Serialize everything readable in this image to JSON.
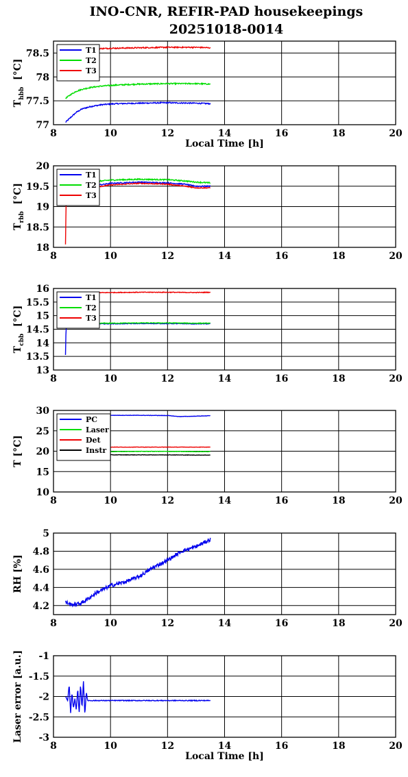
{
  "title_line1": "INO-CNR, REFIR-PAD housekeepings",
  "title_line2": "20251018-0014",
  "chart_data": [
    {
      "type": "line",
      "ylabel": "T",
      "ylabel_sub": "hbb",
      "ylabel_unit": "[°C]",
      "xlabel": "Local Time [h]",
      "xlim": [
        8,
        20
      ],
      "ylim": [
        77,
        78.75
      ],
      "xticks": [
        8,
        10,
        12,
        14,
        16,
        18,
        20
      ],
      "yticks": [
        77,
        77.5,
        78,
        78.5
      ],
      "ytick_labels": [
        "77",
        "77.5",
        "78",
        "78.5"
      ],
      "legend_position": "top-left",
      "series": [
        {
          "name": "T1",
          "color": "#0000ee",
          "x": [
            8.42,
            8.6,
            8.8,
            9.0,
            9.3,
            9.7,
            10.2,
            11.0,
            12.0,
            13.0,
            13.5
          ],
          "y": [
            77.05,
            77.15,
            77.26,
            77.33,
            77.38,
            77.42,
            77.44,
            77.45,
            77.46,
            77.45,
            77.44
          ],
          "noise": 0.012
        },
        {
          "name": "T2",
          "color": "#00dd00",
          "x": [
            8.42,
            8.6,
            8.8,
            9.0,
            9.3,
            9.7,
            10.2,
            11.0,
            12.0,
            13.0,
            13.5
          ],
          "y": [
            77.55,
            77.63,
            77.7,
            77.74,
            77.78,
            77.81,
            77.83,
            77.85,
            77.86,
            77.86,
            77.85
          ],
          "noise": 0.012
        },
        {
          "name": "T3",
          "color": "#ee0000",
          "x": [
            8.42,
            9.0,
            10.0,
            11.0,
            12.0,
            13.0,
            13.5
          ],
          "y": [
            78.56,
            78.58,
            78.6,
            78.61,
            78.62,
            78.62,
            78.61
          ],
          "noise": 0.012
        }
      ]
    },
    {
      "type": "line",
      "ylabel": "T",
      "ylabel_sub": "rbb",
      "ylabel_unit": "[°C]",
      "xlabel": "",
      "xlim": [
        8,
        20
      ],
      "ylim": [
        18,
        20
      ],
      "xticks": [
        8,
        10,
        12,
        14,
        16,
        18,
        20
      ],
      "yticks": [
        18,
        18.5,
        19,
        19.5,
        20
      ],
      "ytick_labels": [
        "18",
        "18.5",
        "19",
        "19.5",
        "20"
      ],
      "legend_position": "top-left",
      "series": [
        {
          "name": "T1",
          "color": "#0000ee",
          "x": [
            8.42,
            8.45,
            8.5,
            9.0,
            9.7,
            10.0,
            11.0,
            12.0,
            12.6,
            13.0,
            13.5
          ],
          "y": [
            19.2,
            19.45,
            19.5,
            19.52,
            19.54,
            19.57,
            19.6,
            19.58,
            19.55,
            19.5,
            19.5
          ],
          "noise": 0.012
        },
        {
          "name": "T2",
          "color": "#00dd00",
          "x": [
            8.42,
            8.45,
            8.5,
            9.0,
            9.7,
            10.0,
            11.0,
            12.0,
            12.6,
            13.0,
            13.5
          ],
          "y": [
            19.4,
            19.55,
            19.58,
            19.6,
            19.63,
            19.65,
            19.67,
            19.66,
            19.63,
            19.6,
            19.58
          ],
          "noise": 0.014
        },
        {
          "name": "T3",
          "color": "#ee0000",
          "x": [
            8.42,
            8.43,
            8.45,
            8.5,
            9.0,
            9.7,
            10.0,
            11.0,
            12.0,
            12.6,
            13.0,
            13.5
          ],
          "y": [
            18.07,
            18.6,
            19.3,
            19.45,
            19.48,
            19.5,
            19.53,
            19.57,
            19.55,
            19.5,
            19.46,
            19.46
          ],
          "noise": 0.012
        }
      ]
    },
    {
      "type": "line",
      "ylabel": "T",
      "ylabel_sub": "cbb",
      "ylabel_unit": "[°C]",
      "xlabel": "",
      "xlim": [
        8,
        20
      ],
      "ylim": [
        13,
        16
      ],
      "xticks": [
        8,
        10,
        12,
        14,
        16,
        18,
        20
      ],
      "yticks": [
        13,
        13.5,
        14,
        14.5,
        15,
        15.5,
        16
      ],
      "ytick_labels": [
        "13",
        "13.5",
        "14",
        "14.5",
        "15",
        "15.5",
        "16"
      ],
      "legend_position": "top-left",
      "series": [
        {
          "name": "T1",
          "color": "#0000ee",
          "x": [
            8.42,
            8.43,
            8.45,
            8.5,
            9.0,
            10.0,
            11.0,
            12.0,
            13.0,
            13.5
          ],
          "y": [
            13.55,
            14.2,
            14.6,
            14.68,
            14.7,
            14.7,
            14.71,
            14.71,
            14.7,
            14.7
          ],
          "noise": 0.012
        },
        {
          "name": "T2",
          "color": "#00dd00",
          "x": [
            8.42,
            8.45,
            8.5,
            9.0,
            10.0,
            11.0,
            12.0,
            13.0,
            13.5
          ],
          "y": [
            14.6,
            14.7,
            14.72,
            14.72,
            14.72,
            14.73,
            14.73,
            14.72,
            14.72
          ],
          "noise": 0.014
        },
        {
          "name": "T3",
          "color": "#ee0000",
          "x": [
            8.42,
            9.0,
            10.0,
            11.0,
            12.0,
            13.0,
            13.5
          ],
          "y": [
            15.82,
            15.84,
            15.85,
            15.86,
            15.86,
            15.85,
            15.86
          ],
          "noise": 0.012
        }
      ]
    },
    {
      "type": "line",
      "ylabel": "T [°C]",
      "ylabel_sub": "",
      "ylabel_unit": "",
      "xlabel": "",
      "xlim": [
        8,
        20
      ],
      "ylim": [
        10,
        30
      ],
      "xticks": [
        8,
        10,
        12,
        14,
        16,
        18,
        20
      ],
      "yticks": [
        10,
        15,
        20,
        25,
        30
      ],
      "ytick_labels": [
        "10",
        "15",
        "20",
        "25",
        "30"
      ],
      "legend_position": "top-left",
      "series": [
        {
          "name": "PC",
          "color": "#0000ee",
          "x": [
            8.42,
            9.0,
            10.0,
            11.0,
            12.0,
            12.4,
            12.8,
            13.5
          ],
          "y": [
            28.7,
            28.8,
            28.8,
            28.8,
            28.75,
            28.5,
            28.55,
            28.7
          ],
          "noise": 0.04
        },
        {
          "name": "Laser",
          "color": "#00dd00",
          "x": [
            8.42,
            9.0,
            10.0,
            11.0,
            12.0,
            13.0,
            13.5
          ],
          "y": [
            19.9,
            19.9,
            19.9,
            19.95,
            19.95,
            19.9,
            19.9
          ],
          "noise": 0.05
        },
        {
          "name": "Det",
          "color": "#ee0000",
          "x": [
            8.42,
            9.0,
            10.0,
            11.0,
            12.0,
            13.0,
            13.5
          ],
          "y": [
            21.0,
            21.0,
            21.0,
            21.0,
            21.0,
            21.0,
            21.0
          ],
          "noise": 0.04
        },
        {
          "name": "Instr",
          "color": "#000000",
          "x": [
            8.42,
            9.0,
            10.0,
            11.0,
            12.0,
            13.0,
            13.5
          ],
          "y": [
            19.1,
            19.1,
            19.1,
            19.1,
            19.1,
            19.05,
            19.05
          ],
          "noise": 0.05
        }
      ]
    },
    {
      "type": "line",
      "ylabel": "RH [%]",
      "ylabel_sub": "",
      "ylabel_unit": "",
      "xlabel": "",
      "xlim": [
        8,
        20
      ],
      "ylim": [
        4.1,
        5.0
      ],
      "xticks": [
        8,
        10,
        12,
        14,
        16,
        18,
        20
      ],
      "yticks": [
        4.2,
        4.4,
        4.6,
        4.8,
        5.0
      ],
      "ytick_labels": [
        "4.2",
        "4.4",
        "4.6",
        "4.8",
        "5"
      ],
      "legend_position": "none",
      "series": [
        {
          "name": "",
          "color": "#0000ee",
          "x": [
            8.42,
            8.6,
            8.9,
            9.1,
            9.5,
            10.0,
            10.5,
            11.0,
            11.5,
            12.0,
            12.5,
            13.0,
            13.5
          ],
          "y": [
            4.24,
            4.21,
            4.22,
            4.25,
            4.34,
            4.42,
            4.46,
            4.52,
            4.62,
            4.7,
            4.8,
            4.85,
            4.93
          ],
          "noise": 0.02
        }
      ]
    },
    {
      "type": "line",
      "ylabel": "Laser error [a.u.]",
      "ylabel_sub": "",
      "ylabel_unit": "",
      "xlabel": "Local Time [h]",
      "xlim": [
        8,
        20
      ],
      "ylim": [
        -3,
        -1
      ],
      "xticks": [
        8,
        10,
        12,
        14,
        16,
        18,
        20
      ],
      "yticks": [
        -3,
        -2.5,
        -2,
        -1.5,
        -1
      ],
      "ytick_labels": [
        "-3",
        "-2.5",
        "-2",
        "-1.5",
        "-1"
      ],
      "legend_position": "none",
      "series": [
        {
          "name": "",
          "color": "#0000ee",
          "x": [
            8.42,
            8.5,
            8.55,
            8.6,
            8.65,
            8.7,
            8.75,
            8.8,
            8.85,
            8.9,
            8.95,
            9.0,
            9.05,
            9.1,
            9.15,
            9.2,
            9.3,
            10.0,
            11.0,
            12.0,
            13.0,
            13.5
          ],
          "y": [
            -2.0,
            -2.1,
            -1.7,
            -2.4,
            -1.9,
            -2.3,
            -2.05,
            -2.35,
            -1.8,
            -2.4,
            -1.7,
            -2.3,
            -1.6,
            -2.45,
            -1.9,
            -2.1,
            -2.1,
            -2.1,
            -2.1,
            -2.1,
            -2.1,
            -2.1
          ],
          "noise": 0.01
        }
      ]
    }
  ]
}
